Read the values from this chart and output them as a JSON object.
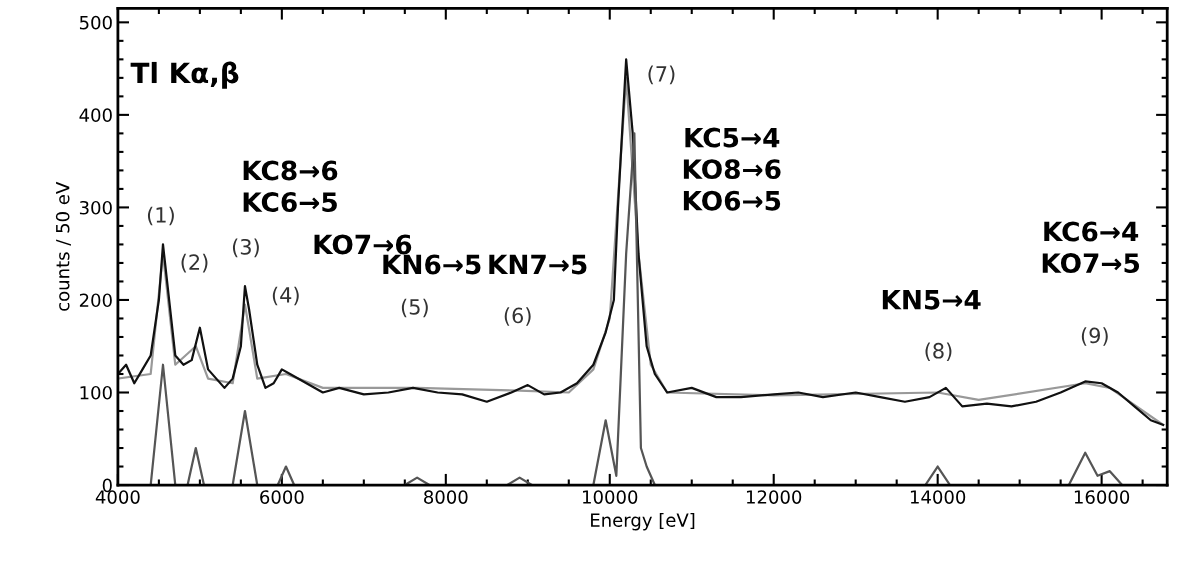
{
  "chart_data": {
    "type": "line",
    "xlabel": "Energy [eV]",
    "ylabel": "counts / 50 eV",
    "xlim": [
      4000,
      16800
    ],
    "ylim": [
      0,
      515
    ],
    "xticks": [
      4000,
      {
        "value": 4500,
        "label": null
      },
      {
        "value": 5000,
        "label": null
      },
      {
        "value": 5500,
        "label": null
      },
      6000,
      {
        "value": 6500,
        "label": null
      },
      {
        "value": 7000,
        "label": null
      },
      {
        "value": 7500,
        "label": null
      },
      8000,
      {
        "value": 8500,
        "label": null
      },
      {
        "value": 9000,
        "label": null
      },
      {
        "value": 9500,
        "label": null
      },
      10000,
      {
        "value": 10500,
        "label": null
      },
      {
        "value": 11000,
        "label": null
      },
      {
        "value": 11500,
        "label": null
      },
      12000,
      {
        "value": 12500,
        "label": null
      },
      {
        "value": 13000,
        "label": null
      },
      {
        "value": 13500,
        "label": null
      },
      14000,
      {
        "value": 14500,
        "label": null
      },
      {
        "value": 15000,
        "label": null
      },
      {
        "value": 15500,
        "label": null
      },
      16000,
      {
        "value": 16500,
        "label": null
      }
    ],
    "yticks": [
      0,
      {
        "value": 20,
        "label": null
      },
      {
        "value": 40,
        "label": null
      },
      {
        "value": 60,
        "label": null
      },
      {
        "value": 80,
        "label": null
      },
      100,
      {
        "value": 120,
        "label": null
      },
      {
        "value": 140,
        "label": null
      },
      {
        "value": 160,
        "label": null
      },
      {
        "value": 180,
        "label": null
      },
      200,
      {
        "value": 220,
        "label": null
      },
      {
        "value": 240,
        "label": null
      },
      {
        "value": 260,
        "label": null
      },
      {
        "value": 280,
        "label": null
      },
      300,
      {
        "value": 320,
        "label": null
      },
      {
        "value": 340,
        "label": null
      },
      {
        "value": 360,
        "label": null
      },
      {
        "value": 380,
        "label": null
      },
      400,
      {
        "value": 420,
        "label": null
      },
      {
        "value": 440,
        "label": null
      },
      {
        "value": 460,
        "label": null
      },
      {
        "value": 480,
        "label": null
      },
      500
    ],
    "grid": false,
    "legend": false,
    "series": [
      {
        "color": "#999999",
        "x": [
          4000,
          4400,
          4550,
          4700,
          4950,
          5100,
          5400,
          5550,
          5700,
          6050,
          6500,
          7650,
          8900,
          9500,
          9800,
          10000,
          10200,
          10350,
          10500,
          10700,
          12000,
          14000,
          14500,
          15800,
          16100,
          16750
        ],
        "values": [
          115,
          120,
          250,
          130,
          150,
          115,
          110,
          195,
          115,
          120,
          105,
          105,
          102,
          100,
          125,
          180,
          440,
          250,
          130,
          100,
          97,
          100,
          92,
          110,
          105,
          65
        ]
      },
      {
        "color": "#111111",
        "x": [
          4000,
          4100,
          4200,
          4300,
          4400,
          4500,
          4550,
          4600,
          4700,
          4800,
          4900,
          5000,
          5100,
          5200,
          5300,
          5400,
          5500,
          5550,
          5600,
          5700,
          5800,
          5900,
          6000,
          6100,
          6300,
          6500,
          6700,
          7000,
          7300,
          7600,
          7900,
          8200,
          8500,
          8800,
          9000,
          9200,
          9400,
          9600,
          9800,
          9950,
          10050,
          10100,
          10200,
          10280,
          10350,
          10450,
          10550,
          10700,
          11000,
          11300,
          11600,
          12000,
          12300,
          12600,
          13000,
          13300,
          13600,
          13900,
          14100,
          14300,
          14600,
          14900,
          15200,
          15500,
          15800,
          16000,
          16200,
          16400,
          16600,
          16750
        ],
        "values": [
          120,
          130,
          110,
          125,
          140,
          200,
          260,
          220,
          140,
          130,
          135,
          170,
          125,
          115,
          105,
          115,
          150,
          215,
          190,
          130,
          105,
          110,
          125,
          120,
          110,
          100,
          105,
          98,
          100,
          105,
          100,
          98,
          90,
          100,
          108,
          98,
          100,
          110,
          130,
          165,
          200,
          300,
          460,
          380,
          250,
          150,
          120,
          100,
          105,
          95,
          95,
          98,
          100,
          95,
          100,
          95,
          90,
          95,
          105,
          85,
          88,
          85,
          90,
          100,
          112,
          110,
          100,
          85,
          70,
          65
        ]
      },
      {
        "color": "#555555",
        "x": [
          4000,
          4400,
          4550,
          4700,
          4850,
          4950,
          5050,
          5400,
          5550,
          5700,
          5950,
          6050,
          6150,
          7500,
          7650,
          7800,
          8750,
          8900,
          9050,
          9800,
          9950,
          10080,
          10200,
          10300,
          10380,
          10450,
          10550,
          13850,
          14000,
          14150,
          15600,
          15800,
          15950,
          16100,
          16250,
          16750
        ],
        "values": [
          0,
          0,
          130,
          0,
          0,
          40,
          0,
          0,
          80,
          0,
          0,
          20,
          0,
          0,
          8,
          0,
          0,
          8,
          0,
          0,
          70,
          10,
          250,
          380,
          40,
          20,
          0,
          0,
          20,
          0,
          0,
          35,
          10,
          15,
          0,
          0
        ]
      }
    ],
    "annotations": [
      "Tl Kα,β",
      "(1)",
      "(2)",
      "(3)",
      "(4)",
      "(5)",
      "(6)",
      "(7)",
      "(8)",
      "(9)",
      "KC8→6\nKC6→5",
      "KO7→6",
      "KN6→5",
      "KN7→5",
      "KC5→4\nKO8→6\nKO6→5",
      "KN5→4",
      "KC6→4\nKO7→5"
    ]
  }
}
